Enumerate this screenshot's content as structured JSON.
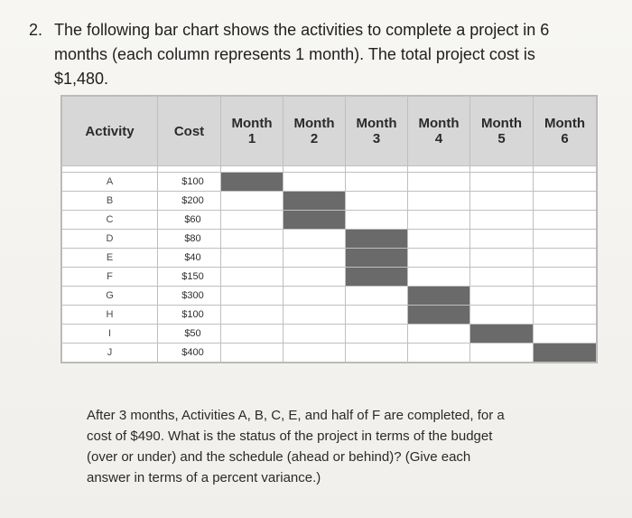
{
  "question": {
    "number": "2.",
    "line1": "The following bar chart shows the activities to complete a project in 6",
    "line2": "months (each column represents 1 month). The total project cost is",
    "line3": "$1,480."
  },
  "table": {
    "headers": {
      "activity": "Activity",
      "cost": "Cost",
      "months": [
        {
          "word": "Month",
          "num": "1"
        },
        {
          "word": "Month",
          "num": "2"
        },
        {
          "word": "Month",
          "num": "3"
        },
        {
          "word": "Month",
          "num": "4"
        },
        {
          "word": "Month",
          "num": "5"
        },
        {
          "word": "Month",
          "num": "6"
        }
      ]
    },
    "rows": [
      {
        "activity": "A",
        "cost": "$100",
        "months": [
          1,
          0,
          0,
          0,
          0,
          0
        ]
      },
      {
        "activity": "B",
        "cost": "$200",
        "months": [
          0,
          1,
          0,
          0,
          0,
          0
        ]
      },
      {
        "activity": "C",
        "cost": "$60",
        "months": [
          0,
          1,
          0,
          0,
          0,
          0
        ]
      },
      {
        "activity": "D",
        "cost": "$80",
        "months": [
          0,
          0,
          1,
          0,
          0,
          0
        ]
      },
      {
        "activity": "E",
        "cost": "$40",
        "months": [
          0,
          0,
          1,
          0,
          0,
          0
        ]
      },
      {
        "activity": "F",
        "cost": "$150",
        "months": [
          0,
          0,
          1,
          0,
          0,
          0
        ]
      },
      {
        "activity": "G",
        "cost": "$300",
        "months": [
          0,
          0,
          0,
          1,
          0,
          0
        ]
      },
      {
        "activity": "H",
        "cost": "$100",
        "months": [
          0,
          0,
          0,
          1,
          0,
          0
        ]
      },
      {
        "activity": "I",
        "cost": "$50",
        "months": [
          0,
          0,
          0,
          0,
          1,
          0
        ]
      },
      {
        "activity": "J",
        "cost": "$400",
        "months": [
          0,
          0,
          0,
          0,
          0,
          1
        ]
      }
    ]
  },
  "colors": {
    "header_bg": "#d7d7d7",
    "filled_cell": "#6a6a6a",
    "grid_line": "#bfbfbf"
  },
  "after": {
    "line1": "After 3 months, Activities A, B, C, E, and half of F are completed, for a",
    "line2": "cost of $490. What is the status of the project in terms of the budget",
    "line3": "(over or under) and the schedule (ahead or behind)? (Give each",
    "line4": "answer in terms of a percent variance.)"
  }
}
